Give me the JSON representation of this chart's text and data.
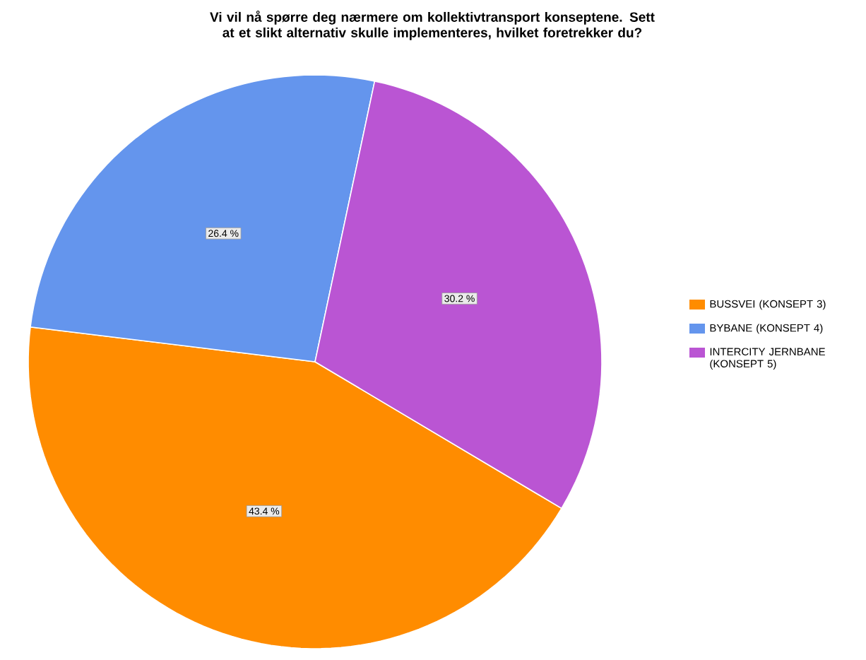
{
  "chart_data": {
    "type": "pie",
    "title": "Vi vil nå spørre deg nærmere om kollektivtransport konseptene. Sett at et slikt alternativ skulle implementeres, hvilket foretrekker du?",
    "categories": [
      "BUSSVEI (KONSEPT 3)",
      "BYBANE (KONSEPT 4)",
      "INTERCITY JERNBANE (KONSEPT 5)"
    ],
    "values": [
      43.4,
      26.4,
      30.2
    ],
    "value_labels": [
      "43.4 %",
      "26.4 %",
      "30.2 %"
    ],
    "colors": [
      "#ff8c00",
      "#6495ed",
      "#ba55d3"
    ],
    "legend": "right"
  }
}
